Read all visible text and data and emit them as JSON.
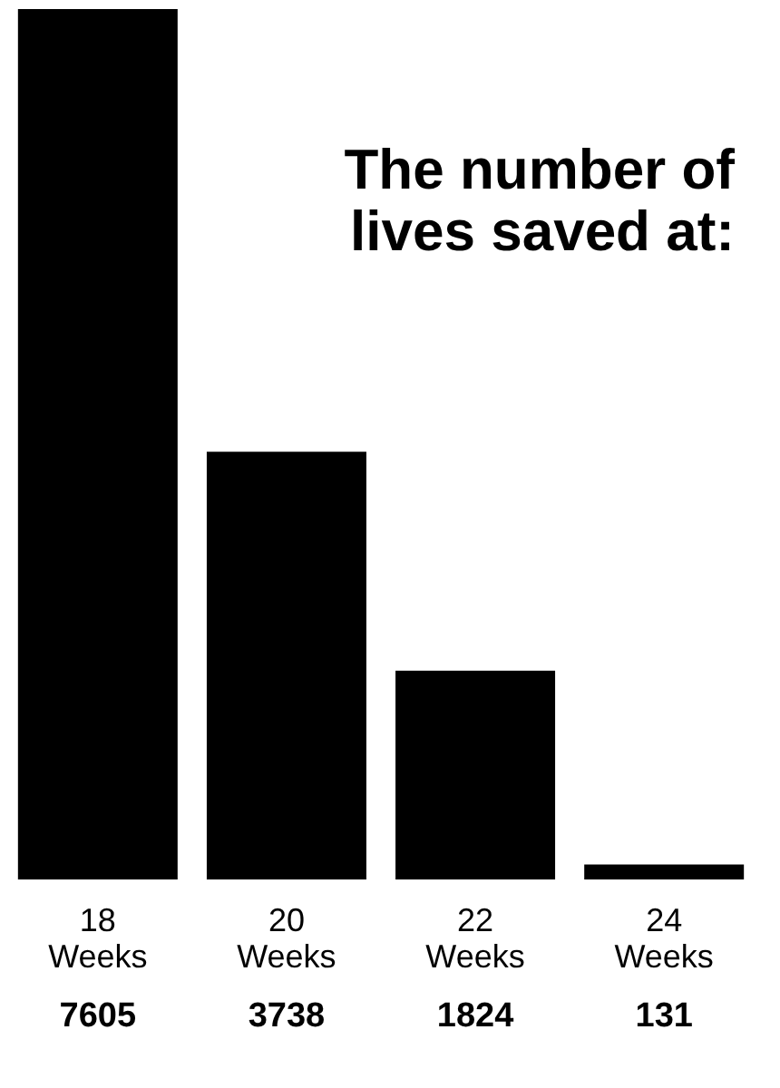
{
  "chart_data": {
    "type": "bar",
    "title": "The number of lives saved at:",
    "categories": [
      "18 Weeks",
      "20 Weeks",
      "22 Weeks",
      "24 Weeks"
    ],
    "values": [
      7605,
      3738,
      1824,
      131
    ],
    "color": "#000000",
    "data_labels": true,
    "tick_labels": "x"
  }
}
